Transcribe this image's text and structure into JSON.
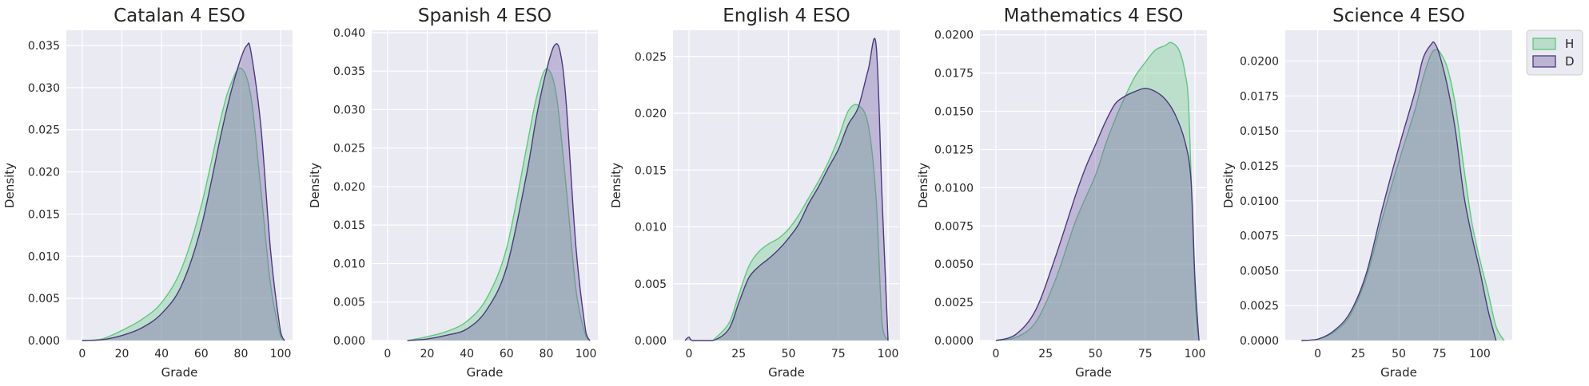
{
  "legend": {
    "entries": [
      {
        "label": "H",
        "color": "#5fc77e"
      },
      {
        "label": "D",
        "color": "#4b3a7e"
      }
    ]
  },
  "colors": {
    "plot_background": "#eaeaf2",
    "grid": "#ffffff",
    "H_line": "#5fc77e",
    "H_fill": "#5fc77e",
    "D_line": "#4b3a7e",
    "D_fill": "#7a65a8"
  },
  "chart_data": [
    {
      "type": "area",
      "title": "Catalan 4 ESO",
      "xlabel": "Grade",
      "ylabel": "Density",
      "xlim": [
        -8,
        106
      ],
      "ylim": [
        0,
        0.0368
      ],
      "xticks": [
        0,
        20,
        40,
        60,
        80,
        100
      ],
      "xtick_labels": [
        "0",
        "20",
        "40",
        "60",
        "80",
        "100"
      ],
      "yticks": [
        0,
        0.005,
        0.01,
        0.015,
        0.02,
        0.025,
        0.03,
        0.035
      ],
      "ytick_labels": [
        "0.000",
        "0.005",
        "0.010",
        "0.015",
        "0.020",
        "0.025",
        "0.030",
        "0.035"
      ],
      "grid": true,
      "series": [
        {
          "name": "H",
          "x": [
            0,
            10,
            20,
            30,
            40,
            50,
            60,
            70,
            75,
            80,
            85,
            90,
            95,
            100,
            102
          ],
          "y": [
            0,
            0.0002,
            0.0012,
            0.0025,
            0.0045,
            0.0085,
            0.016,
            0.0265,
            0.0305,
            0.0323,
            0.029,
            0.018,
            0.0065,
            0.0005,
            0
          ]
        },
        {
          "name": "D",
          "x": [
            0,
            10,
            20,
            30,
            40,
            50,
            60,
            70,
            75,
            80,
            83,
            85,
            90,
            95,
            100,
            102
          ],
          "y": [
            0,
            0.0001,
            0.0006,
            0.0015,
            0.0032,
            0.0065,
            0.0135,
            0.0245,
            0.0295,
            0.0335,
            0.035,
            0.0343,
            0.0255,
            0.0105,
            0.001,
            0
          ]
        }
      ]
    },
    {
      "type": "area",
      "title": "Spanish 4 ESO",
      "xlabel": "Grade",
      "ylabel": "Density",
      "xlim": [
        -8,
        106
      ],
      "ylim": [
        0,
        0.0403
      ],
      "xticks": [
        0,
        20,
        40,
        60,
        80,
        100
      ],
      "xtick_labels": [
        "0",
        "20",
        "40",
        "60",
        "80",
        "100"
      ],
      "yticks": [
        0,
        0.005,
        0.01,
        0.015,
        0.02,
        0.025,
        0.03,
        0.035,
        0.04
      ],
      "ytick_labels": [
        "0.000",
        "0.005",
        "0.010",
        "0.015",
        "0.020",
        "0.025",
        "0.030",
        "0.035",
        "0.040"
      ],
      "grid": true,
      "series": [
        {
          "name": "H",
          "x": [
            10,
            20,
            30,
            40,
            50,
            60,
            70,
            75,
            80,
            85,
            90,
            95,
            100,
            102
          ],
          "y": [
            0,
            0.0005,
            0.0012,
            0.0025,
            0.0055,
            0.012,
            0.025,
            0.0315,
            0.0353,
            0.032,
            0.02,
            0.0065,
            0.0005,
            0
          ]
        },
        {
          "name": "D",
          "x": [
            10,
            20,
            30,
            40,
            50,
            60,
            70,
            75,
            80,
            84,
            87,
            90,
            95,
            100,
            102
          ],
          "y": [
            0,
            0.0002,
            0.0007,
            0.0015,
            0.004,
            0.0095,
            0.0215,
            0.029,
            0.035,
            0.0383,
            0.0375,
            0.031,
            0.012,
            0.001,
            0
          ]
        }
      ]
    },
    {
      "type": "area",
      "title": "English 4 ESO",
      "xlabel": "Grade",
      "ylabel": "Density",
      "xlim": [
        -8,
        106
      ],
      "ylim": [
        0,
        0.0273
      ],
      "xticks": [
        0,
        25,
        50,
        75,
        100
      ],
      "xtick_labels": [
        "0",
        "25",
        "50",
        "75",
        "100"
      ],
      "yticks": [
        0,
        0.005,
        0.01,
        0.015,
        0.02,
        0.025
      ],
      "ytick_labels": [
        "0.000",
        "0.005",
        "0.010",
        "0.015",
        "0.020",
        "0.025"
      ],
      "grid": true,
      "series": [
        {
          "name": "H",
          "x": [
            12,
            20,
            25,
            30,
            35,
            40,
            45,
            50,
            55,
            60,
            65,
            70,
            75,
            80,
            85,
            90,
            94,
            97,
            100
          ],
          "y": [
            0,
            0.0015,
            0.004,
            0.0065,
            0.0078,
            0.0085,
            0.009,
            0.0098,
            0.011,
            0.0125,
            0.014,
            0.0157,
            0.0178,
            0.0202,
            0.0207,
            0.019,
            0.0125,
            0.0015,
            0
          ]
        },
        {
          "name": "D",
          "x": [
            -2,
            0,
            2,
            12,
            20,
            25,
            30,
            35,
            40,
            45,
            50,
            55,
            60,
            65,
            70,
            75,
            80,
            85,
            90,
            94,
            97,
            100
          ],
          "y": [
            0,
            0.0003,
            0,
            0,
            0.001,
            0.0033,
            0.0055,
            0.0065,
            0.0072,
            0.008,
            0.009,
            0.0102,
            0.012,
            0.0135,
            0.0152,
            0.0168,
            0.019,
            0.0205,
            0.0238,
            0.026,
            0.0125,
            0
          ]
        }
      ]
    },
    {
      "type": "area",
      "title": "Mathematics 4 ESO",
      "xlabel": "Grade",
      "ylabel": "Density",
      "xlim": [
        -8,
        106
      ],
      "ylim": [
        0,
        0.0203
      ],
      "xticks": [
        0,
        25,
        50,
        75,
        100
      ],
      "xtick_labels": [
        "0",
        "25",
        "50",
        "75",
        "100"
      ],
      "yticks": [
        0,
        0.0025,
        0.005,
        0.0075,
        0.01,
        0.0125,
        0.015,
        0.0175,
        0.02
      ],
      "ytick_labels": [
        "0.0000",
        "0.0025",
        "0.0050",
        "0.0075",
        "0.0100",
        "0.0125",
        "0.0150",
        "0.0175",
        "0.0200"
      ],
      "grid": true,
      "series": [
        {
          "name": "H",
          "x": [
            0,
            10,
            20,
            30,
            40,
            50,
            55,
            60,
            65,
            70,
            75,
            80,
            85,
            88,
            92,
            95,
            97,
            100,
            102
          ],
          "y": [
            0,
            0.0002,
            0.0012,
            0.004,
            0.0078,
            0.0108,
            0.0128,
            0.0145,
            0.016,
            0.0173,
            0.0182,
            0.019,
            0.0193,
            0.0195,
            0.019,
            0.0175,
            0.0148,
            0.003,
            0
          ]
        },
        {
          "name": "D",
          "x": [
            0,
            10,
            20,
            30,
            40,
            45,
            50,
            55,
            60,
            65,
            70,
            75,
            80,
            85,
            90,
            95,
            98,
            100,
            102
          ],
          "y": [
            0,
            0.0004,
            0.002,
            0.0055,
            0.0095,
            0.0113,
            0.0128,
            0.0143,
            0.0155,
            0.016,
            0.0163,
            0.0165,
            0.0163,
            0.0158,
            0.0148,
            0.013,
            0.0105,
            0.004,
            0
          ]
        }
      ]
    },
    {
      "type": "area",
      "title": "Science 4 ESO",
      "xlabel": "Grade",
      "ylabel": "Density",
      "xlim": [
        -20,
        120
      ],
      "ylim": [
        0,
        0.0222
      ],
      "xticks": [
        0,
        25,
        50,
        75,
        100
      ],
      "xtick_labels": [
        "0",
        "25",
        "50",
        "75",
        "100"
      ],
      "yticks": [
        0,
        0.0025,
        0.005,
        0.0075,
        0.01,
        0.0125,
        0.015,
        0.0175,
        0.02
      ],
      "ytick_labels": [
        "0.0000",
        "0.0025",
        "0.0050",
        "0.0075",
        "0.0100",
        "0.0125",
        "0.0150",
        "0.0175",
        "0.0200"
      ],
      "grid": true,
      "series": [
        {
          "name": "H",
          "x": [
            -10,
            0,
            10,
            20,
            30,
            40,
            50,
            60,
            65,
            70,
            73,
            75,
            80,
            85,
            90,
            95,
            100,
            105,
            110,
            115
          ],
          "y": [
            0,
            0.0001,
            0.0006,
            0.0018,
            0.0045,
            0.0088,
            0.0128,
            0.0165,
            0.0188,
            0.0205,
            0.0208,
            0.0207,
            0.0195,
            0.0168,
            0.0125,
            0.0085,
            0.0058,
            0.0035,
            0.001,
            0
          ]
        },
        {
          "name": "D",
          "x": [
            -10,
            0,
            10,
            20,
            30,
            40,
            50,
            60,
            65,
            70,
            72,
            75,
            80,
            85,
            90,
            95,
            100,
            105,
            110
          ],
          "y": [
            0,
            0.0001,
            0.0007,
            0.002,
            0.0048,
            0.0095,
            0.0138,
            0.0178,
            0.0202,
            0.0212,
            0.0213,
            0.0205,
            0.0182,
            0.015,
            0.0105,
            0.0075,
            0.005,
            0.0022,
            0
          ]
        }
      ]
    }
  ]
}
